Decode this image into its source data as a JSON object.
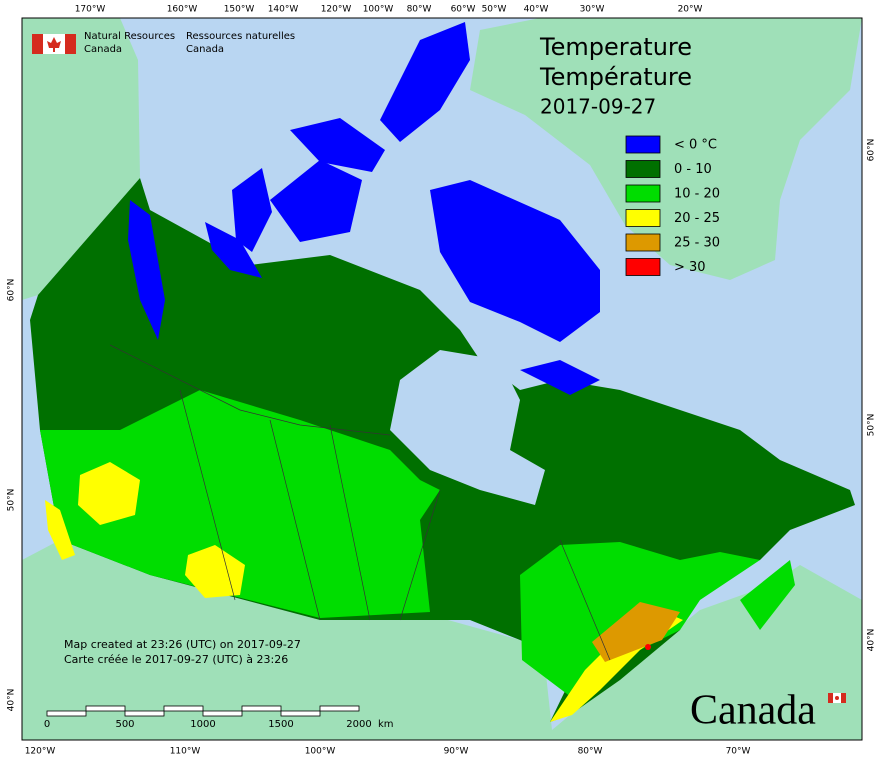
{
  "header": {
    "agency_en": [
      "Natural Resources",
      "Canada"
    ],
    "agency_fr": [
      "Ressources naturelles",
      "Canada"
    ]
  },
  "title": [
    "Temperature",
    "Température",
    "2017-09-27"
  ],
  "legend": [
    {
      "label": "< 0 °C",
      "color": "#0000ff"
    },
    {
      "label": "0 - 10",
      "color": "#007000"
    },
    {
      "label": "10 - 20",
      "color": "#00dd00"
    },
    {
      "label": "20 - 25",
      "color": "#ffff00"
    },
    {
      "label": "25 - 30",
      "color": "#dd9900"
    },
    {
      "label": "> 30",
      "color": "#ff0000"
    }
  ],
  "credits": [
    "Map created at 23:26 (UTC) on 2017-09-27",
    "Carte créée le 2017-09-27 (UTC) à 23:26"
  ],
  "scale_bar": {
    "ticks": [
      "0",
      "500",
      "1000",
      "1500",
      "2000"
    ],
    "unit": "km"
  },
  "graticule": {
    "top": [
      "170°W",
      "160°W",
      "150°W",
      "140°W",
      "120°W",
      "100°W",
      "80°W",
      "60°W",
      "50°W",
      "40°W",
      "30°W",
      "20°W"
    ],
    "bottom": [
      "120°W",
      "110°W",
      "100°W",
      "90°W",
      "80°W",
      "70°W"
    ],
    "left": [
      "60°N",
      "50°N",
      "40°N"
    ],
    "right": [
      "60°N",
      "50°N",
      "40°N"
    ]
  },
  "wordmark": "Canada"
}
